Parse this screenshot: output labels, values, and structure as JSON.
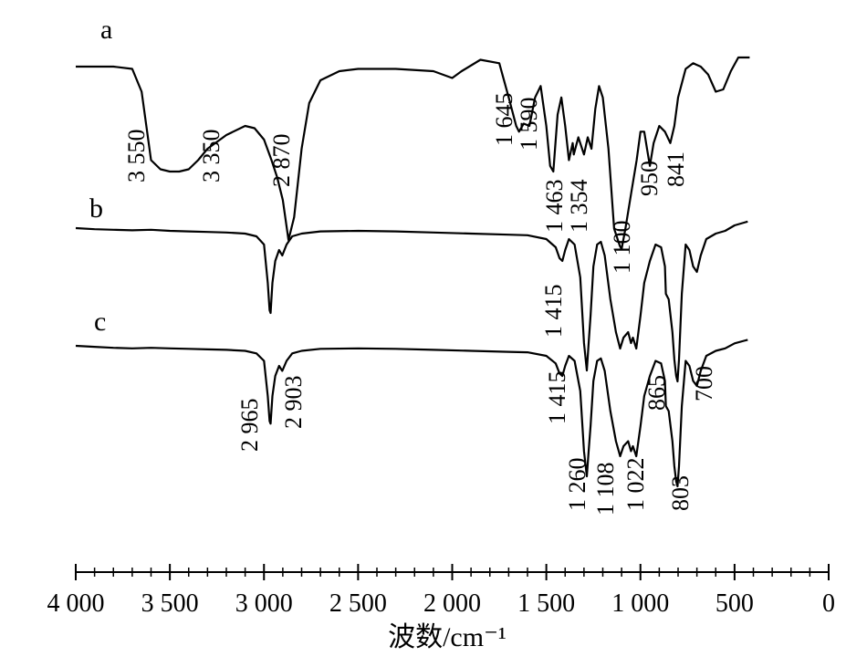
{
  "chart_data": {
    "type": "line",
    "xlabel": "波数/cm⁻¹",
    "ylabel": "",
    "xlim": [
      4000,
      0
    ],
    "x_ticks": [
      {
        "value": 4000,
        "label": "4 000"
      },
      {
        "value": 3500,
        "label": "3 500"
      },
      {
        "value": 3000,
        "label": "3 000"
      },
      {
        "value": 2500,
        "label": "2 500"
      },
      {
        "value": 2000,
        "label": "2 000"
      },
      {
        "value": 1500,
        "label": "1 500"
      },
      {
        "value": 1000,
        "label": "1 000"
      },
      {
        "value": 500,
        "label": "500"
      },
      {
        "value": 0,
        "label": "0"
      }
    ],
    "grid": false,
    "series": [
      {
        "name": "a",
        "points": [
          [
            4000,
            0.08
          ],
          [
            3800,
            0.08
          ],
          [
            3700,
            0.1
          ],
          [
            3650,
            0.3
          ],
          [
            3600,
            0.9
          ],
          [
            3550,
            0.98
          ],
          [
            3500,
            1.0
          ],
          [
            3450,
            1.0
          ],
          [
            3400,
            0.98
          ],
          [
            3350,
            0.9
          ],
          [
            3300,
            0.8
          ],
          [
            3200,
            0.68
          ],
          [
            3100,
            0.6
          ],
          [
            3050,
            0.62
          ],
          [
            3000,
            0.72
          ],
          [
            2960,
            0.9
          ],
          [
            2930,
            1.05
          ],
          [
            2900,
            1.25
          ],
          [
            2870,
            1.6
          ],
          [
            2840,
            1.4
          ],
          [
            2800,
            0.8
          ],
          [
            2760,
            0.4
          ],
          [
            2700,
            0.2
          ],
          [
            2600,
            0.12
          ],
          [
            2500,
            0.1
          ],
          [
            2300,
            0.1
          ],
          [
            2100,
            0.12
          ],
          [
            2000,
            0.18
          ],
          [
            1950,
            0.12
          ],
          [
            1850,
            0.02
          ],
          [
            1750,
            0.05
          ],
          [
            1700,
            0.35
          ],
          [
            1660,
            0.6
          ],
          [
            1645,
            0.65
          ],
          [
            1620,
            0.58
          ],
          [
            1590,
            0.6
          ],
          [
            1560,
            0.35
          ],
          [
            1530,
            0.25
          ],
          [
            1500,
            0.6
          ],
          [
            1480,
            0.95
          ],
          [
            1463,
            1.0
          ],
          [
            1440,
            0.5
          ],
          [
            1420,
            0.35
          ],
          [
            1400,
            0.6
          ],
          [
            1380,
            0.9
          ],
          [
            1360,
            0.75
          ],
          [
            1354,
            0.85
          ],
          [
            1330,
            0.7
          ],
          [
            1300,
            0.85
          ],
          [
            1280,
            0.7
          ],
          [
            1260,
            0.8
          ],
          [
            1240,
            0.45
          ],
          [
            1220,
            0.25
          ],
          [
            1200,
            0.35
          ],
          [
            1170,
            0.8
          ],
          [
            1140,
            1.5
          ],
          [
            1110,
            1.65
          ],
          [
            1100,
            1.68
          ],
          [
            1080,
            1.5
          ],
          [
            1050,
            1.2
          ],
          [
            1020,
            0.9
          ],
          [
            1000,
            0.65
          ],
          [
            980,
            0.65
          ],
          [
            960,
            0.85
          ],
          [
            950,
            0.95
          ],
          [
            930,
            0.75
          ],
          [
            900,
            0.6
          ],
          [
            870,
            0.65
          ],
          [
            841,
            0.75
          ],
          [
            820,
            0.6
          ],
          [
            800,
            0.35
          ],
          [
            760,
            0.1
          ],
          [
            720,
            0.05
          ],
          [
            680,
            0.08
          ],
          [
            640,
            0.15
          ],
          [
            600,
            0.3
          ],
          [
            560,
            0.28
          ],
          [
            520,
            0.12
          ],
          [
            480,
            0.0
          ],
          [
            420,
            0.0
          ]
        ],
        "peaks": [
          {
            "x": 3550,
            "label": "3 550"
          },
          {
            "x": 3350,
            "label": "3 350"
          },
          {
            "x": 2870,
            "label": "2 870"
          },
          {
            "x": 1645,
            "label": "1 645"
          },
          {
            "x": 1590,
            "label": "1 590"
          },
          {
            "x": 1463,
            "label": "1 463"
          },
          {
            "x": 1354,
            "label": "1 354"
          },
          {
            "x": 1100,
            "label": "1 100"
          },
          {
            "x": 950,
            "label": "950"
          },
          {
            "x": 841,
            "label": "841"
          }
        ]
      },
      {
        "name": "b",
        "points": [
          [
            4000,
            0.0
          ],
          [
            3900,
            0.02
          ],
          [
            3800,
            0.03
          ],
          [
            3700,
            0.04
          ],
          [
            3600,
            0.03
          ],
          [
            3500,
            0.05
          ],
          [
            3400,
            0.06
          ],
          [
            3300,
            0.07
          ],
          [
            3200,
            0.08
          ],
          [
            3100,
            0.1
          ],
          [
            3040,
            0.15
          ],
          [
            3000,
            0.3
          ],
          [
            2980,
            1.0
          ],
          [
            2970,
            1.5
          ],
          [
            2965,
            1.55
          ],
          [
            2955,
            1.0
          ],
          [
            2940,
            0.6
          ],
          [
            2920,
            0.4
          ],
          [
            2903,
            0.5
          ],
          [
            2880,
            0.3
          ],
          [
            2850,
            0.15
          ],
          [
            2800,
            0.1
          ],
          [
            2700,
            0.06
          ],
          [
            2500,
            0.05
          ],
          [
            2300,
            0.06
          ],
          [
            2100,
            0.08
          ],
          [
            1900,
            0.1
          ],
          [
            1700,
            0.12
          ],
          [
            1600,
            0.13
          ],
          [
            1500,
            0.2
          ],
          [
            1450,
            0.35
          ],
          [
            1430,
            0.55
          ],
          [
            1415,
            0.6
          ],
          [
            1400,
            0.4
          ],
          [
            1380,
            0.2
          ],
          [
            1350,
            0.3
          ],
          [
            1320,
            0.9
          ],
          [
            1300,
            2.1
          ],
          [
            1285,
            2.6
          ],
          [
            1275,
            2.1
          ],
          [
            1265,
            1.6
          ],
          [
            1250,
            0.7
          ],
          [
            1230,
            0.3
          ],
          [
            1210,
            0.25
          ],
          [
            1190,
            0.5
          ],
          [
            1160,
            1.3
          ],
          [
            1130,
            1.9
          ],
          [
            1115,
            2.1
          ],
          [
            1108,
            2.2
          ],
          [
            1090,
            2.0
          ],
          [
            1065,
            1.9
          ],
          [
            1050,
            2.1
          ],
          [
            1040,
            2.0
          ],
          [
            1022,
            2.2
          ],
          [
            1000,
            1.6
          ],
          [
            980,
            1.0
          ],
          [
            950,
            0.6
          ],
          [
            920,
            0.3
          ],
          [
            890,
            0.35
          ],
          [
            870,
            0.7
          ],
          [
            865,
            1.2
          ],
          [
            850,
            1.3
          ],
          [
            830,
            1.9
          ],
          [
            820,
            2.4
          ],
          [
            810,
            2.7
          ],
          [
            803,
            2.8
          ],
          [
            795,
            2.4
          ],
          [
            780,
            1.2
          ],
          [
            760,
            0.3
          ],
          [
            740,
            0.4
          ],
          [
            720,
            0.7
          ],
          [
            700,
            0.8
          ],
          [
            680,
            0.5
          ],
          [
            650,
            0.2
          ],
          [
            600,
            0.1
          ],
          [
            550,
            0.05
          ],
          [
            500,
            -0.05
          ],
          [
            450,
            -0.1
          ],
          [
            430,
            -0.12
          ]
        ],
        "peaks": [
          {
            "x": 2965,
            "label": "2 965"
          },
          {
            "x": 2903,
            "label": "2 903"
          },
          {
            "x": 1415,
            "label": "1 415"
          },
          {
            "x": 1260,
            "label": "1 260"
          },
          {
            "x": 1108,
            "label": "1 108"
          },
          {
            "x": 1022,
            "label": "1 022"
          },
          {
            "x": 865,
            "label": "865"
          },
          {
            "x": 803,
            "label": "803"
          },
          {
            "x": 700,
            "label": "700"
          }
        ]
      },
      {
        "name": "c",
        "points": [
          [
            4000,
            0.0
          ],
          [
            3900,
            0.02
          ],
          [
            3800,
            0.04
          ],
          [
            3700,
            0.05
          ],
          [
            3600,
            0.04
          ],
          [
            3500,
            0.05
          ],
          [
            3400,
            0.06
          ],
          [
            3300,
            0.07
          ],
          [
            3200,
            0.08
          ],
          [
            3100,
            0.1
          ],
          [
            3040,
            0.15
          ],
          [
            3000,
            0.3
          ],
          [
            2980,
            1.0
          ],
          [
            2970,
            1.5
          ],
          [
            2965,
            1.55
          ],
          [
            2955,
            1.0
          ],
          [
            2940,
            0.6
          ],
          [
            2920,
            0.4
          ],
          [
            2903,
            0.5
          ],
          [
            2880,
            0.3
          ],
          [
            2850,
            0.15
          ],
          [
            2800,
            0.1
          ],
          [
            2700,
            0.06
          ],
          [
            2500,
            0.05
          ],
          [
            2300,
            0.06
          ],
          [
            2100,
            0.08
          ],
          [
            1900,
            0.1
          ],
          [
            1700,
            0.12
          ],
          [
            1600,
            0.13
          ],
          [
            1500,
            0.2
          ],
          [
            1450,
            0.35
          ],
          [
            1430,
            0.55
          ],
          [
            1415,
            0.6
          ],
          [
            1400,
            0.4
          ],
          [
            1380,
            0.2
          ],
          [
            1350,
            0.3
          ],
          [
            1320,
            0.9
          ],
          [
            1300,
            2.1
          ],
          [
            1285,
            2.6
          ],
          [
            1275,
            2.1
          ],
          [
            1265,
            1.6
          ],
          [
            1250,
            0.7
          ],
          [
            1230,
            0.3
          ],
          [
            1210,
            0.25
          ],
          [
            1190,
            0.5
          ],
          [
            1160,
            1.3
          ],
          [
            1130,
            1.9
          ],
          [
            1115,
            2.1
          ],
          [
            1108,
            2.2
          ],
          [
            1090,
            2.0
          ],
          [
            1065,
            1.9
          ],
          [
            1050,
            2.1
          ],
          [
            1040,
            2.0
          ],
          [
            1022,
            2.2
          ],
          [
            1000,
            1.6
          ],
          [
            980,
            1.0
          ],
          [
            950,
            0.6
          ],
          [
            920,
            0.3
          ],
          [
            890,
            0.35
          ],
          [
            870,
            0.7
          ],
          [
            865,
            1.2
          ],
          [
            850,
            1.3
          ],
          [
            830,
            1.9
          ],
          [
            820,
            2.4
          ],
          [
            810,
            2.7
          ],
          [
            803,
            2.8
          ],
          [
            795,
            2.4
          ],
          [
            780,
            1.2
          ],
          [
            760,
            0.3
          ],
          [
            740,
            0.4
          ],
          [
            720,
            0.7
          ],
          [
            700,
            0.8
          ],
          [
            680,
            0.5
          ],
          [
            650,
            0.2
          ],
          [
            600,
            0.1
          ],
          [
            550,
            0.05
          ],
          [
            500,
            -0.05
          ],
          [
            450,
            -0.1
          ],
          [
            430,
            -0.12
          ]
        ],
        "peaks": [
          {
            "x": 2965,
            "label": "2 965"
          },
          {
            "x": 2903,
            "label": "2 903"
          },
          {
            "x": 1415,
            "label": "1 415"
          },
          {
            "x": 1260,
            "label": "1 260"
          },
          {
            "x": 1108,
            "label": "1 108"
          },
          {
            "x": 1022,
            "label": "1 022"
          },
          {
            "x": 865,
            "label": "865"
          },
          {
            "x": 803,
            "label": "803"
          },
          {
            "x": 700,
            "label": "700"
          }
        ]
      }
    ]
  }
}
